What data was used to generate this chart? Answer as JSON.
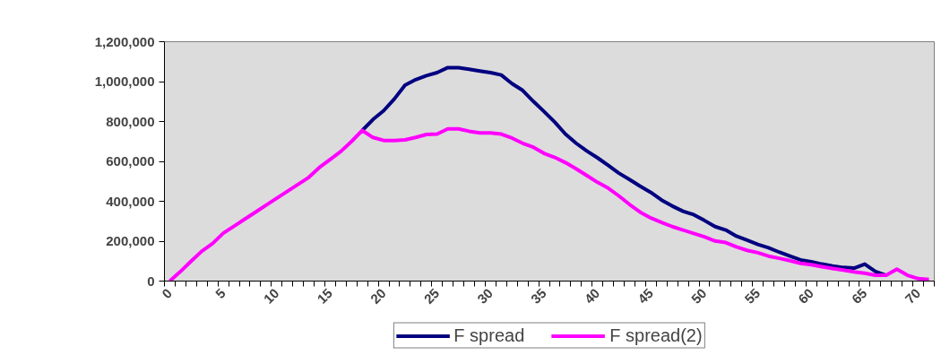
{
  "chart_data": {
    "type": "line",
    "categories": [
      "0",
      null,
      null,
      null,
      null,
      "5",
      null,
      null,
      null,
      null,
      "10",
      null,
      null,
      null,
      null,
      "15",
      null,
      null,
      null,
      null,
      "20",
      null,
      null,
      null,
      null,
      "25",
      null,
      null,
      null,
      null,
      "30",
      null,
      null,
      null,
      null,
      "35",
      null,
      null,
      null,
      null,
      "40",
      null,
      null,
      null,
      null,
      "45",
      null,
      null,
      null,
      null,
      "50",
      null,
      null,
      null,
      null,
      "55",
      null,
      null,
      null,
      null,
      "60",
      null,
      null,
      null,
      null,
      "65",
      null,
      null,
      null,
      null,
      "70",
      null
    ],
    "series": [
      {
        "name": "F spread",
        "color": "#000080",
        "values": [
          null,
          null,
          null,
          null,
          null,
          null,
          null,
          null,
          null,
          null,
          null,
          null,
          null,
          null,
          null,
          null,
          null,
          null,
          755000,
          810000,
          854000,
          913000,
          982000,
          1010000,
          1030000,
          1045000,
          1070000,
          1070000,
          1062000,
          1053000,
          1045000,
          1033000,
          990000,
          956000,
          901000,
          850000,
          797000,
          737000,
          691000,
          652000,
          618000,
          580000,
          541000,
          509000,
          475000,
          444000,
          406000,
          376000,
          350000,
          333000,
          304000,
          273000,
          256000,
          225000,
          205000,
          184000,
          167000,
          145000,
          125000,
          106000,
          97000,
          85000,
          75000,
          68000,
          65000,
          85000,
          48000,
          29000,
          null,
          null,
          null,
          null
        ]
      },
      {
        "name": "F spread(2)",
        "color": "#ff00ff",
        "values": [
          0,
          48000,
          100000,
          150000,
          188000,
          240000,
          275000,
          310000,
          345000,
          380000,
          415000,
          450000,
          485000,
          520000,
          570000,
          610000,
          650000,
          700000,
          755000,
          720000,
          705000,
          705000,
          708000,
          720000,
          735000,
          737000,
          763000,
          763000,
          751000,
          743000,
          743000,
          737000,
          717000,
          691000,
          671000,
          640000,
          620000,
          594000,
          563000,
          529000,
          495000,
          466000,
          427000,
          384000,
          345000,
          316000,
          294000,
          273000,
          256000,
          239000,
          222000,
          201000,
          193000,
          171000,
          154000,
          142000,
          125000,
          114000,
          102000,
          89000,
          82000,
          72000,
          63000,
          55000,
          46000,
          39000,
          29000,
          29000,
          60000,
          29000,
          12000,
          8000
        ]
      }
    ],
    "ylim": [
      0,
      1200000
    ],
    "yticks": [
      {
        "value": 0,
        "label": "0"
      },
      {
        "value": 200000,
        "label": "200,000"
      },
      {
        "value": 400000,
        "label": "400,000"
      },
      {
        "value": 600000,
        "label": "600,000"
      },
      {
        "value": 800000,
        "label": "800,000"
      },
      {
        "value": 1000000,
        "label": "1,000,000"
      },
      {
        "value": 1200000,
        "label": "1,200,000"
      }
    ],
    "legend": "bottom",
    "marker": "none",
    "line_style": "solid"
  }
}
